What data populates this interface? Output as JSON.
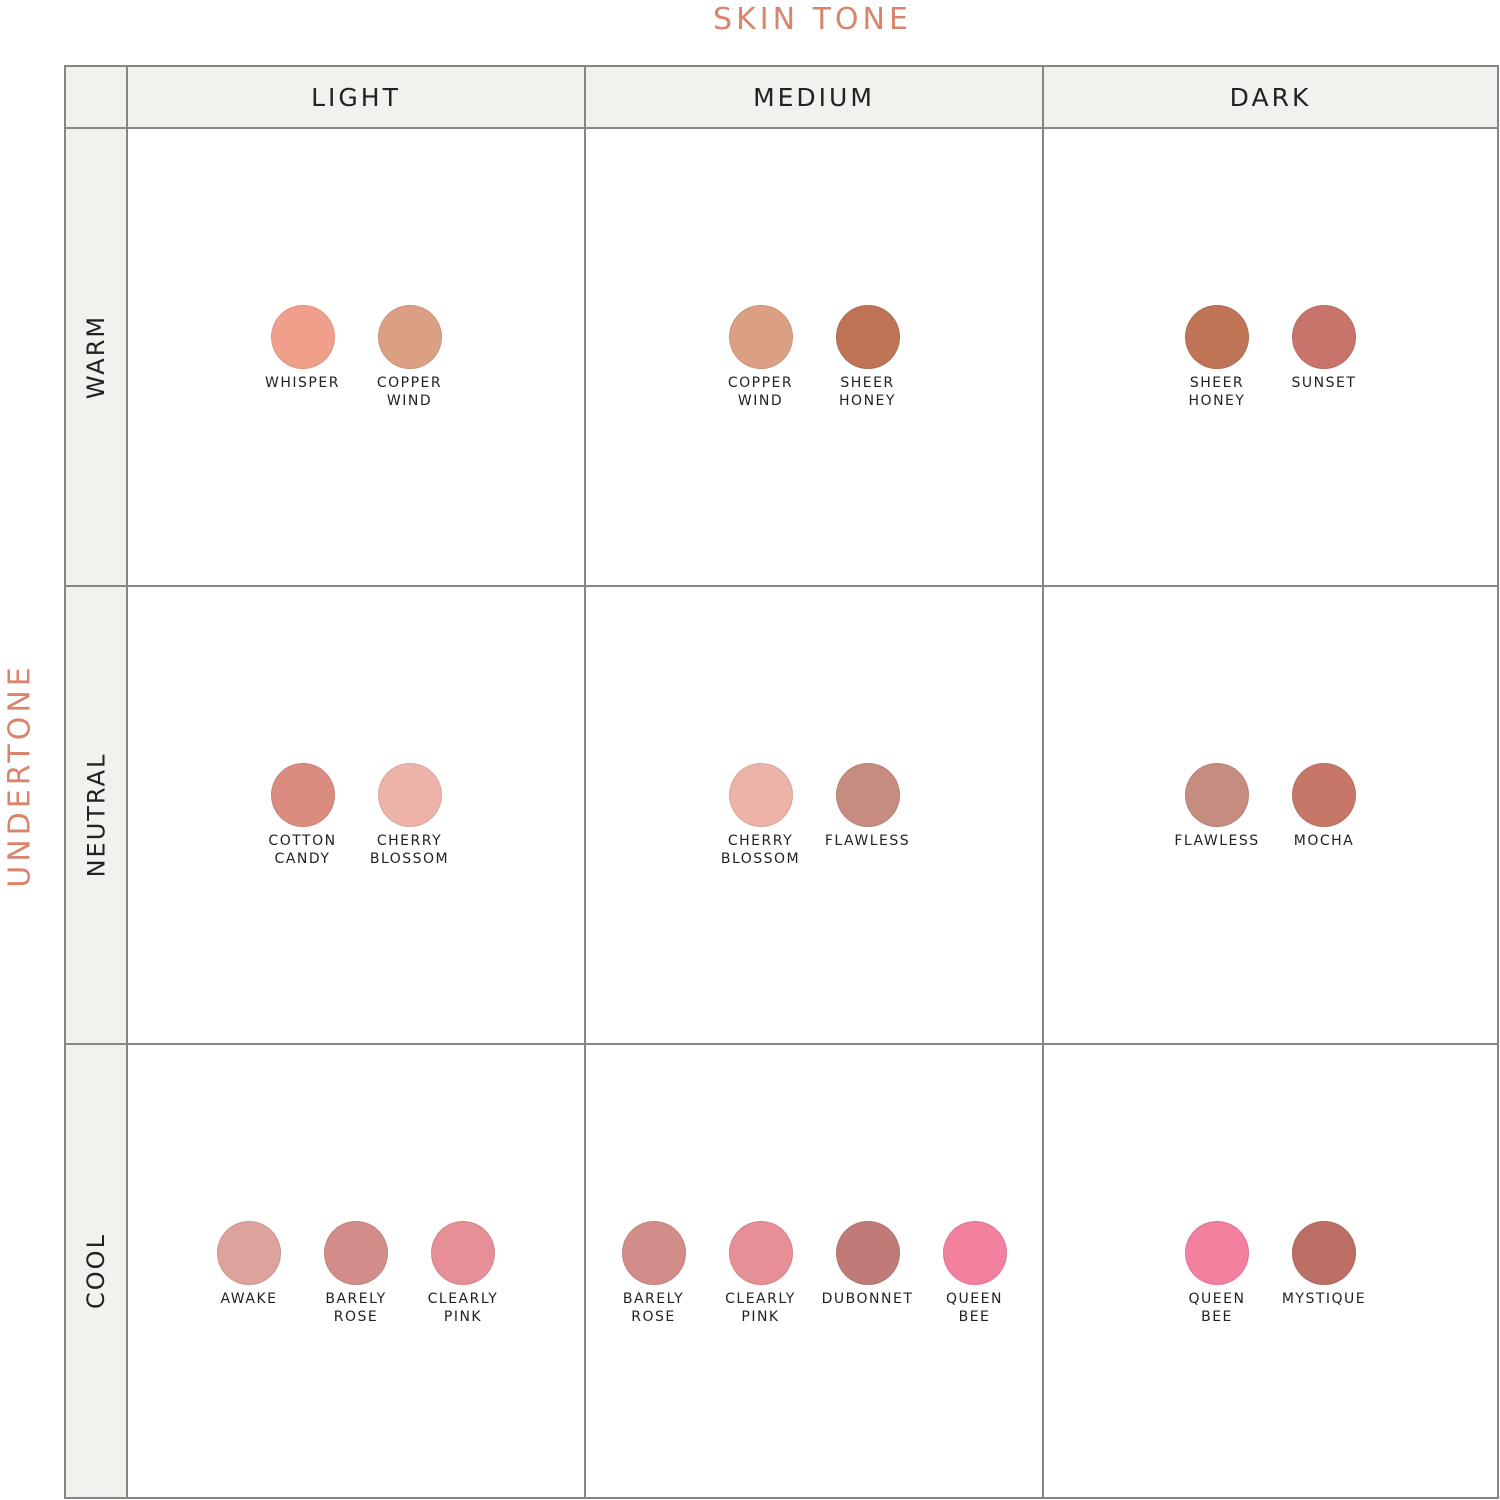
{
  "titles": {
    "skin_tone": "SKIN TONE",
    "undertone": "UNDERTONE"
  },
  "columns": [
    "LIGHT",
    "MEDIUM",
    "DARK"
  ],
  "rows": [
    "WARM",
    "NEUTRAL",
    "COOL"
  ],
  "colors": {
    "accent": "#d9846b",
    "border": "#8a8580",
    "header_bg": "#f3f1ee"
  },
  "cells": [
    [
      [
        {
          "name": "WHISPER",
          "color": "#f0a08a"
        },
        {
          "name": "COPPER\nWIND",
          "color": "#dba084"
        }
      ],
      [
        {
          "name": "COPPER\nWIND",
          "color": "#dba084"
        },
        {
          "name": "SHEER\nHONEY",
          "color": "#bf7456"
        }
      ],
      [
        {
          "name": "SHEER\nHONEY",
          "color": "#bf7456"
        },
        {
          "name": "SUNSET",
          "color": "#c8746a"
        }
      ]
    ],
    [
      [
        {
          "name": "COTTON\nCANDY",
          "color": "#db8c80"
        },
        {
          "name": "CHERRY\nBLOSSOM",
          "color": "#edb3a9"
        }
      ],
      [
        {
          "name": "CHERRY\nBLOSSOM",
          "color": "#edb3a9"
        },
        {
          "name": "FLAWLESS",
          "color": "#c78c80"
        }
      ],
      [
        {
          "name": "FLAWLESS",
          "color": "#c78c80"
        },
        {
          "name": "MOCHA",
          "color": "#c67767"
        }
      ]
    ],
    [
      [
        {
          "name": "AWAKE",
          "color": "#dba39b"
        },
        {
          "name": "BARELY\nROSE",
          "color": "#d38d89"
        },
        {
          "name": "CLEARLY\nPINK",
          "color": "#e68f97"
        }
      ],
      [
        {
          "name": "BARELY\nROSE",
          "color": "#d38d89"
        },
        {
          "name": "CLEARLY\nPINK",
          "color": "#e68f97"
        },
        {
          "name": "DUBONNET",
          "color": "#c17b77"
        },
        {
          "name": "QUEEN\nBEE",
          "color": "#f2809f"
        }
      ],
      [
        {
          "name": "QUEEN\nBEE",
          "color": "#f2809f"
        },
        {
          "name": "MYSTIQUE",
          "color": "#bb6e64"
        }
      ]
    ]
  ]
}
